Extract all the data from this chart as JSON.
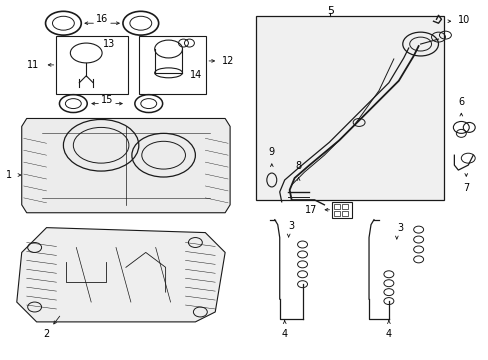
{
  "bg_color": "#ffffff",
  "fig_width": 4.89,
  "fig_height": 3.6,
  "dpi": 100,
  "line_color": "#1a1a1a",
  "text_color": "#000000",
  "font_size": 6.5,
  "gray_fill": "#d8d8d8"
}
